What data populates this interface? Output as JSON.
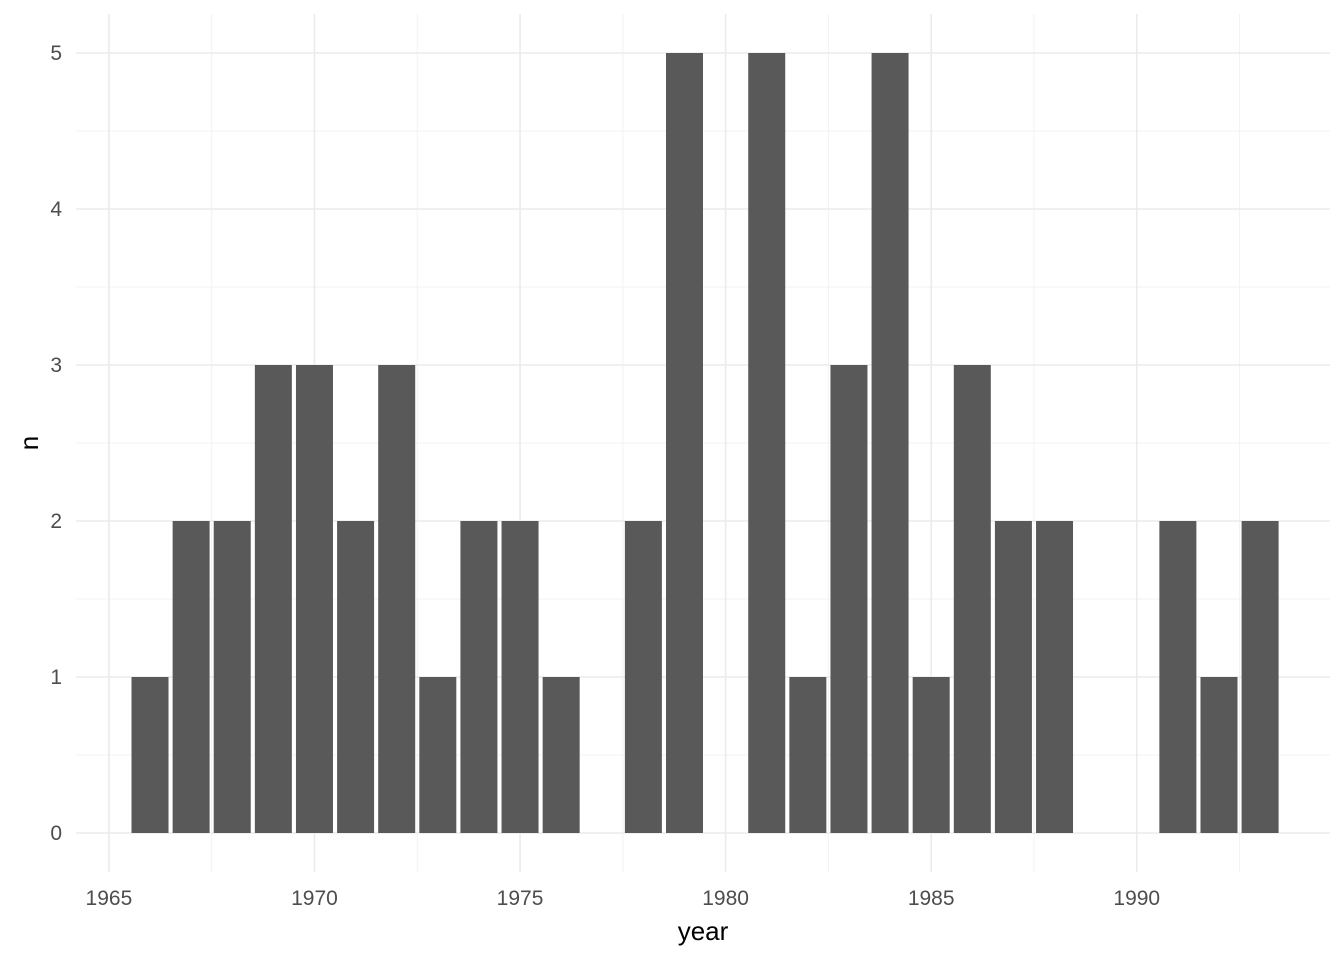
{
  "chart_data": {
    "type": "bar",
    "xlabel": "year",
    "ylabel": "n",
    "xlim": [
      1964.2,
      1994.7
    ],
    "ylim": [
      -0.25,
      5.25
    ],
    "x_ticks": [
      1965,
      1970,
      1975,
      1980,
      1985,
      1990
    ],
    "y_ticks": [
      0,
      1,
      2,
      3,
      4,
      5
    ],
    "grid": true,
    "bar_color": "#595959",
    "bars": [
      {
        "year": 1966,
        "n": 1
      },
      {
        "year": 1967,
        "n": 2
      },
      {
        "year": 1968,
        "n": 2
      },
      {
        "year": 1969,
        "n": 3
      },
      {
        "year": 1970,
        "n": 3
      },
      {
        "year": 1971,
        "n": 2
      },
      {
        "year": 1972,
        "n": 3
      },
      {
        "year": 1973,
        "n": 1
      },
      {
        "year": 1974,
        "n": 2
      },
      {
        "year": 1975,
        "n": 2
      },
      {
        "year": 1976,
        "n": 1
      },
      {
        "year": 1978,
        "n": 2
      },
      {
        "year": 1979,
        "n": 5
      },
      {
        "year": 1981,
        "n": 5
      },
      {
        "year": 1982,
        "n": 1
      },
      {
        "year": 1983,
        "n": 3
      },
      {
        "year": 1984,
        "n": 5
      },
      {
        "year": 1985,
        "n": 1
      },
      {
        "year": 1986,
        "n": 3
      },
      {
        "year": 1987,
        "n": 2
      },
      {
        "year": 1988,
        "n": 2
      },
      {
        "year": 1991,
        "n": 2
      },
      {
        "year": 1992,
        "n": 1
      },
      {
        "year": 1993,
        "n": 2
      }
    ]
  }
}
